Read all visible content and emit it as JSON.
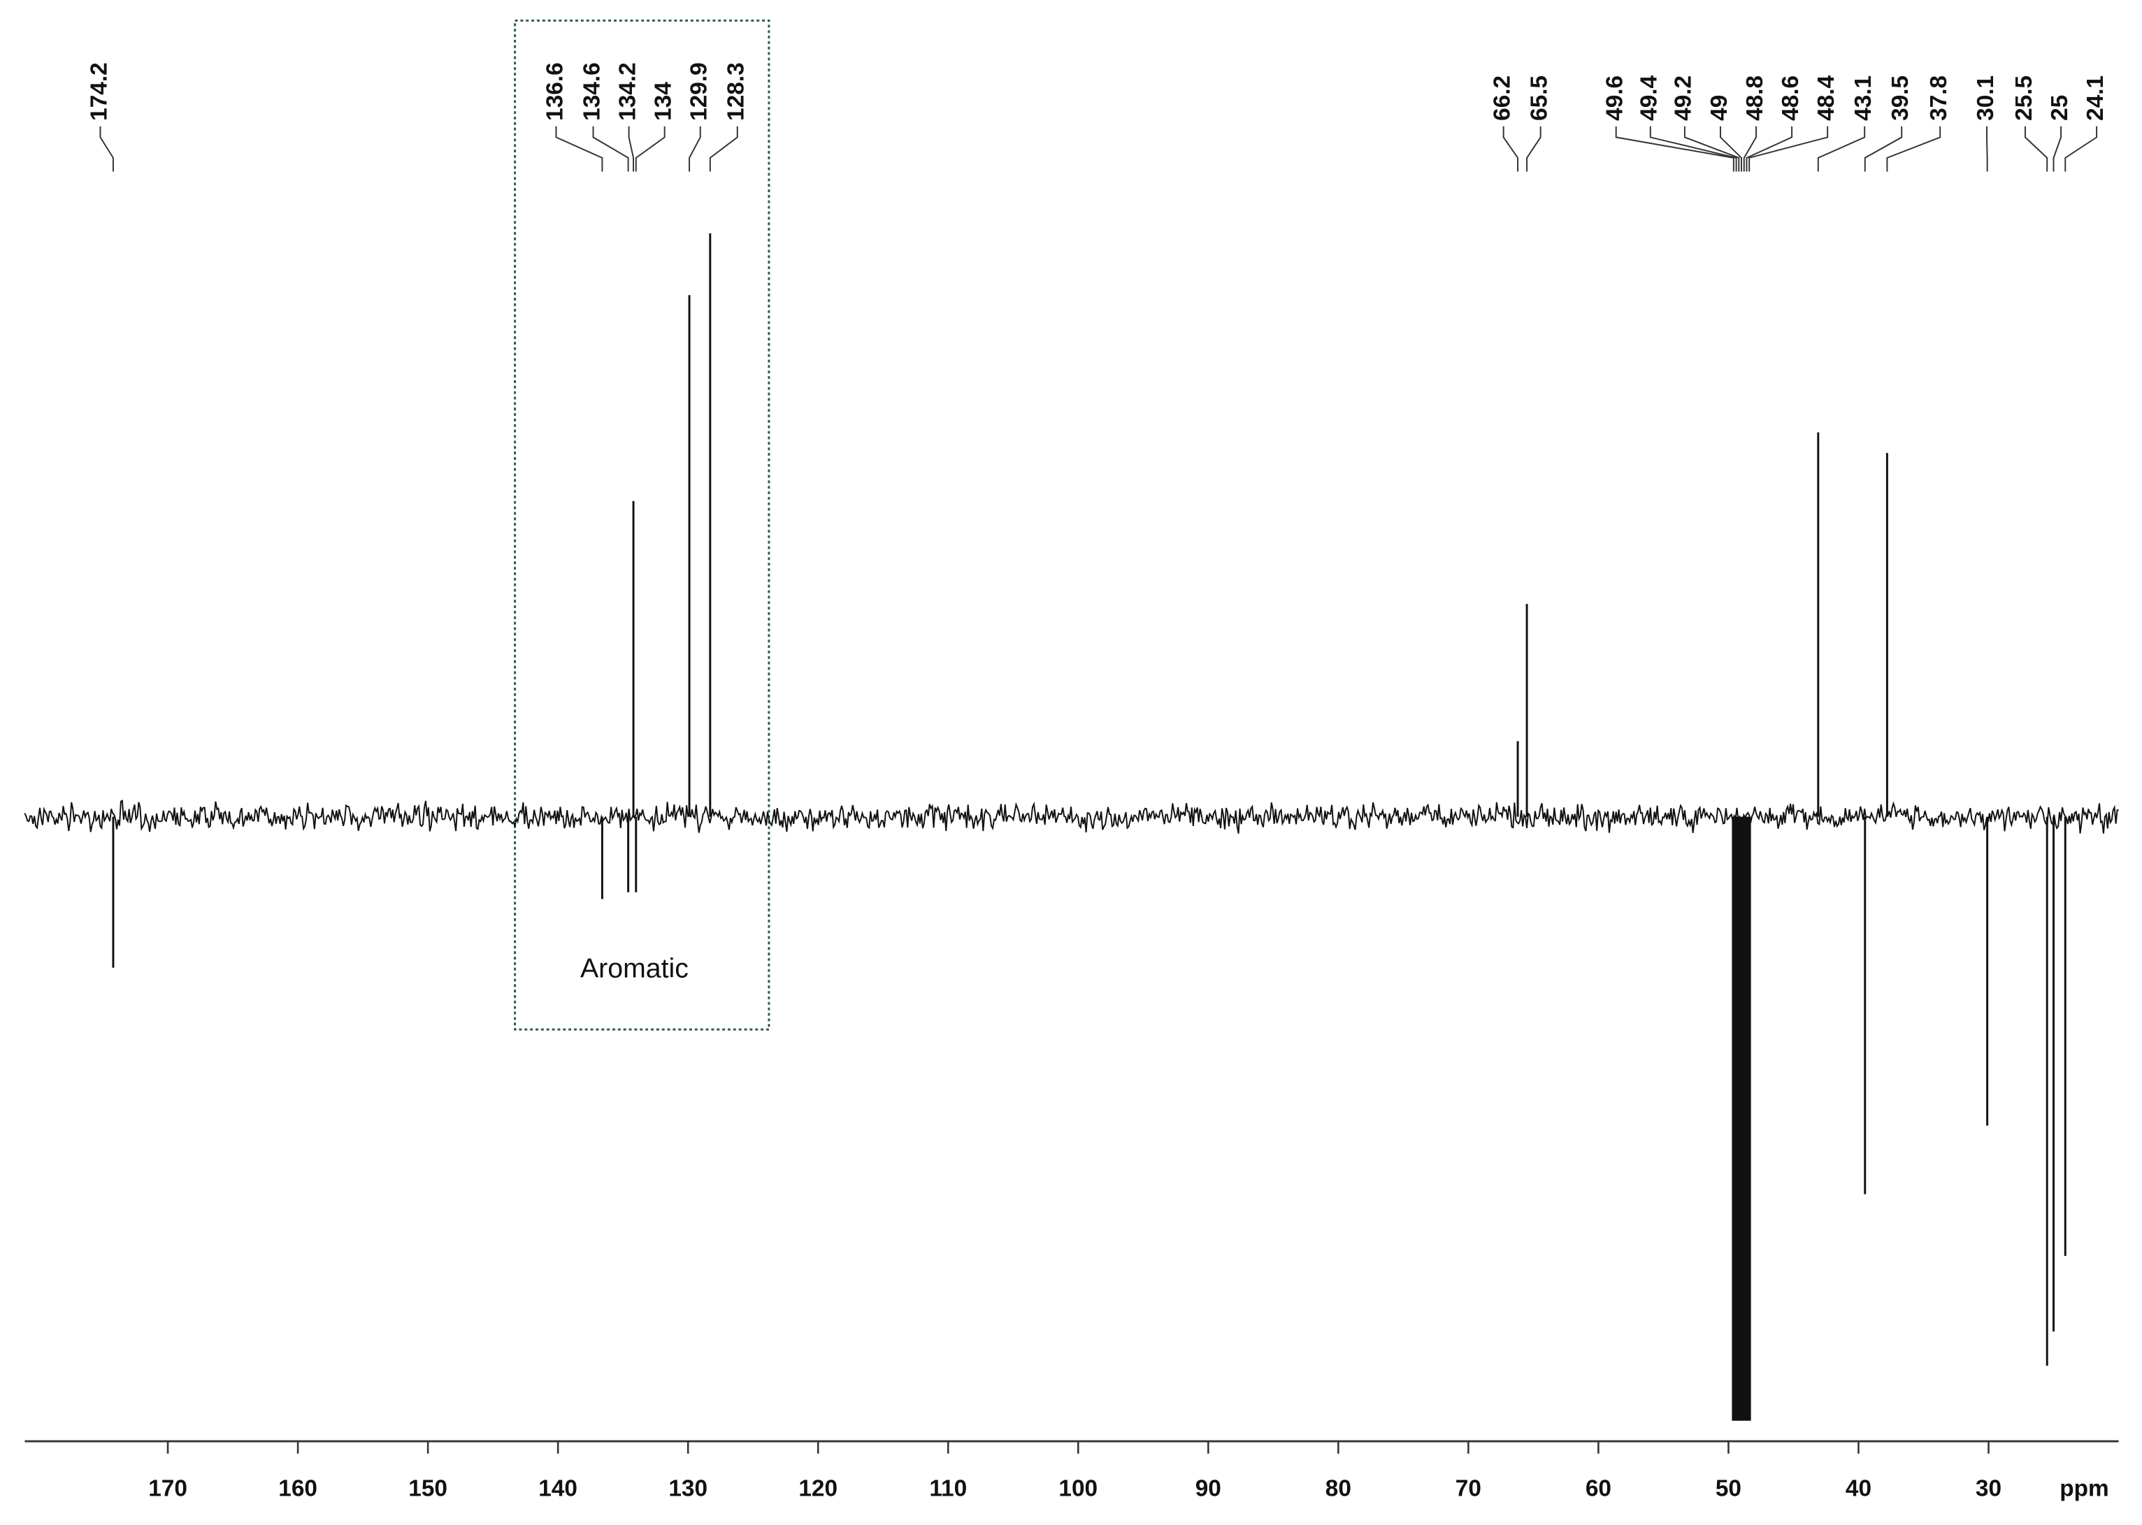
{
  "chart_data": {
    "type": "spectrum",
    "x_label": "ppm",
    "annotation": "Aromatic",
    "xlim": [
      181,
      20
    ],
    "ylim": [
      -45,
      58
    ],
    "xticks": [
      170,
      160,
      150,
      140,
      130,
      120,
      110,
      100,
      90,
      80,
      70,
      60,
      50,
      40,
      30
    ],
    "color": "#111111",
    "x": [
      174.2,
      136.6,
      134.6,
      134.2,
      134.0,
      129.9,
      128.3,
      66.2,
      65.5,
      49.6,
      49.4,
      49.2,
      49.0,
      48.8,
      48.6,
      48.4,
      43.1,
      39.5,
      37.8,
      30.1,
      25.5,
      25.0,
      24.1
    ],
    "values": [
      -11,
      -6,
      -5.5,
      23,
      -5.5,
      38,
      42.5,
      5.5,
      15.5,
      -44,
      -44,
      -44,
      -44,
      -44,
      -44,
      -44,
      28,
      -27.5,
      26.5,
      -22.5,
      -40,
      -37.5,
      -32
    ]
  }
}
